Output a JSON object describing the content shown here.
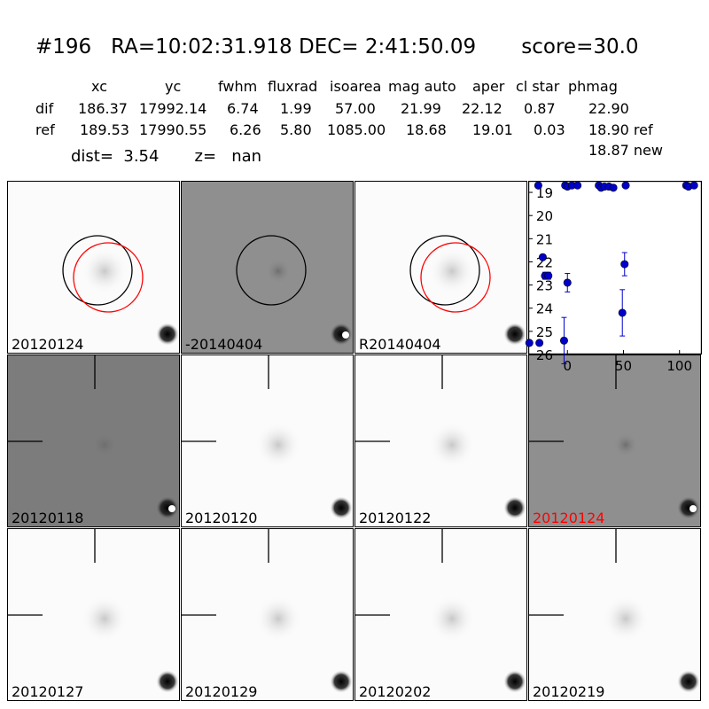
{
  "title": "#196   RA=10:02:31.918 DEC= 2:41:50.09       score=30.0",
  "table": {
    "headers": [
      "xc",
      "yc",
      "fwhm",
      "fluxrad",
      "isoarea",
      "mag auto",
      "aper",
      "cl star",
      "phmag"
    ],
    "rows": [
      {
        "name": "dif",
        "values": [
          "186.37",
          "17992.14",
          "6.74",
          "1.99",
          "57.00",
          "21.99",
          "22.12",
          "0.87",
          "22.90"
        ]
      },
      {
        "name": "ref",
        "values": [
          "189.53",
          "17990.55",
          "6.26",
          "5.80",
          "1085.00",
          "18.68",
          "19.01",
          "0.03",
          "18.90 ref"
        ]
      }
    ],
    "new_mag": "18.87 new",
    "dist_line": "dist=  3.54       z=   nan"
  },
  "panels": [
    {
      "label": "20120124",
      "style": "white",
      "circles": [
        "black",
        "red"
      ],
      "crosshair": false,
      "label_color": "#000000"
    },
    {
      "label": "-20140404",
      "style": "gray",
      "circles": [
        "black"
      ],
      "crosshair": false,
      "label_color": "#000000"
    },
    {
      "label": "R20140404",
      "style": "white",
      "circles": [
        "black",
        "red"
      ],
      "crosshair": false,
      "label_color": "#000000"
    },
    {
      "label": "20120118",
      "style": "darkgray",
      "circles": [],
      "crosshair": true,
      "label_color": "#000000"
    },
    {
      "label": "20120120",
      "style": "white",
      "circles": [],
      "crosshair": true,
      "label_color": "#000000"
    },
    {
      "label": "20120122",
      "style": "white",
      "circles": [],
      "crosshair": true,
      "label_color": "#000000"
    },
    {
      "label": "20120124",
      "style": "gray",
      "circles": [],
      "crosshair": true,
      "label_color": "#ff0000"
    },
    {
      "label": "20120127",
      "style": "white",
      "circles": [],
      "crosshair": true,
      "label_color": "#000000"
    },
    {
      "label": "20120129",
      "style": "white",
      "circles": [],
      "crosshair": true,
      "label_color": "#000000"
    },
    {
      "label": "20120202",
      "style": "white",
      "circles": [],
      "crosshair": true,
      "label_color": "#000000"
    },
    {
      "label": "20120219",
      "style": "white",
      "circles": [],
      "crosshair": true,
      "label_color": "#000000"
    }
  ],
  "chart_data": {
    "type": "scatter",
    "title": "",
    "xlabel": "",
    "ylabel": "",
    "xlim": [
      -35,
      120
    ],
    "ylim": [
      26,
      18.5
    ],
    "y_inverted": true,
    "xticks": [
      0,
      50,
      100
    ],
    "yticks": [
      19,
      20,
      21,
      22,
      23,
      24,
      25,
      26
    ],
    "marker_color": "#0000cc",
    "points": [
      {
        "x": -34,
        "y": 25.5,
        "err": 0
      },
      {
        "x": -26,
        "y": 18.7,
        "err": 0
      },
      {
        "x": -25,
        "y": 25.5,
        "err": 0
      },
      {
        "x": -22,
        "y": 21.8,
        "err": 0.1
      },
      {
        "x": -20,
        "y": 22.6,
        "err": 0.15
      },
      {
        "x": -17,
        "y": 22.6,
        "err": 0.15
      },
      {
        "x": -3,
        "y": 25.4,
        "err": 1.0
      },
      {
        "x": -2,
        "y": 18.7,
        "err": 0
      },
      {
        "x": 0,
        "y": 18.75,
        "err": 0
      },
      {
        "x": 0,
        "y": 22.9,
        "err": 0.4
      },
      {
        "x": 4,
        "y": 18.7,
        "err": 0
      },
      {
        "x": 9,
        "y": 18.7,
        "err": 0
      },
      {
        "x": 28,
        "y": 18.7,
        "err": 0
      },
      {
        "x": 30,
        "y": 18.8,
        "err": 0
      },
      {
        "x": 33,
        "y": 18.75,
        "err": 0
      },
      {
        "x": 37,
        "y": 18.75,
        "err": 0
      },
      {
        "x": 41,
        "y": 18.8,
        "err": 0
      },
      {
        "x": 49,
        "y": 24.2,
        "err": 1.0
      },
      {
        "x": 51,
        "y": 22.1,
        "err": 0.5
      },
      {
        "x": 52,
        "y": 18.7,
        "err": 0
      },
      {
        "x": 106,
        "y": 18.7,
        "err": 0
      },
      {
        "x": 108,
        "y": 18.75,
        "err": 0
      },
      {
        "x": 113,
        "y": 18.7,
        "err": 0
      }
    ]
  }
}
